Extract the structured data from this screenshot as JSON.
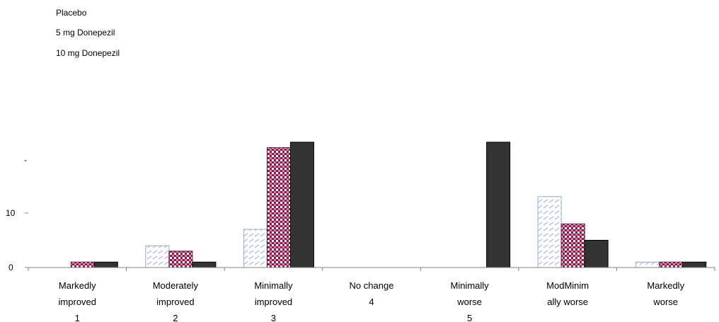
{
  "chart_data": {
    "type": "bar",
    "legend": {
      "entries": [
        "Placebo",
        "5 mg Donepezil",
        "10 mg  Donepezil"
      ],
      "placement": "top-left"
    },
    "categories": [
      {
        "lines": [
          "Markedly",
          "improved",
          "1"
        ]
      },
      {
        "lines": [
          "Moderately",
          "improved",
          "2"
        ]
      },
      {
        "lines": [
          "Minimally",
          "improved",
          "3"
        ]
      },
      {
        "lines": [
          "No change",
          "4"
        ]
      },
      {
        "lines": [
          "Minimally",
          "worse",
          "5"
        ]
      },
      {
        "lines": [
          "ModMinim",
          "ally worse"
        ]
      },
      {
        "lines": [
          "Markedly",
          "worse"
        ]
      }
    ],
    "series": [
      {
        "name": "Placebo",
        "pattern": "dashed-light-blue",
        "values": [
          0,
          4,
          7,
          0,
          0,
          13,
          1
        ]
      },
      {
        "name": "5 mg Donepezil",
        "pattern": "maroon-checker",
        "values": [
          1,
          3,
          22,
          0,
          0,
          8,
          1
        ]
      },
      {
        "name": "10 mg  Donepezil",
        "pattern": "solid-dark",
        "values": [
          1,
          1,
          23,
          0,
          23,
          5,
          1
        ]
      }
    ],
    "y_ticks": [
      "0",
      "10",
      "-"
    ],
    "y_tick_values": [
      0,
      10,
      20
    ],
    "ylim": [
      0,
      23
    ],
    "grid": false,
    "colors": {
      "placebo": "#aab8e0",
      "donepezil_5": "#8b1a4a",
      "donepezil_10": "#333333",
      "axis": "#808080"
    }
  }
}
